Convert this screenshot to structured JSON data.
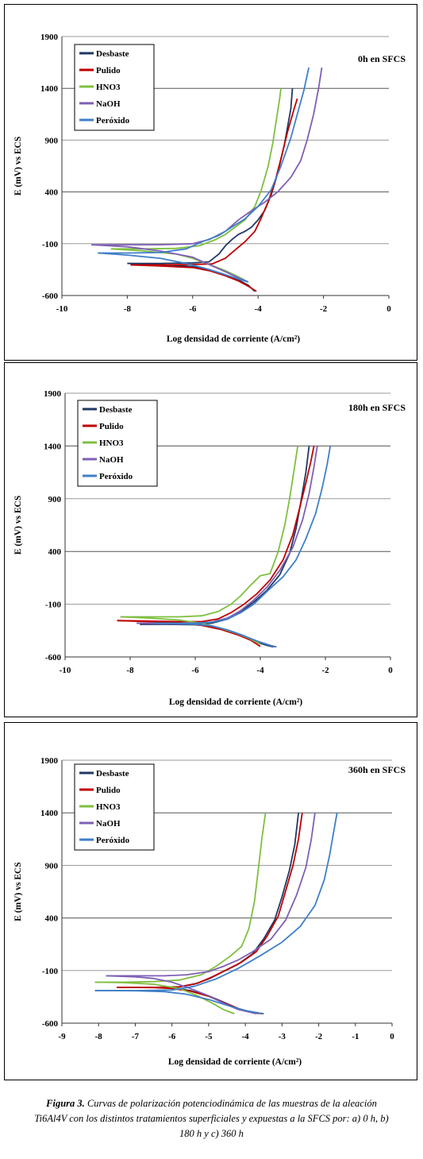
{
  "chart_data": [
    {
      "type": "line",
      "title": "0h en SFCS",
      "xlabel": "Log densidad de corriente (A/cm²)",
      "ylabel": "E (mV) vs ECS",
      "xlim": [
        -10,
        0
      ],
      "ylim": [
        -600,
        1900
      ],
      "xticks": [
        "-10",
        "-8",
        "-6",
        "-4",
        "-2",
        "0"
      ],
      "yticks": [
        "-600",
        "-100",
        "400",
        "900",
        "1400",
        "1900"
      ],
      "grid": "horizontal",
      "legend_position": "top-left",
      "series": [
        {
          "name": "Desbaste",
          "color": "#1f3864",
          "x": [
            -8.0,
            -7.0,
            -6.0,
            -5.5,
            -5.2,
            -5.0,
            -4.8,
            -4.6,
            -4.4,
            -4.2,
            -4.0,
            -3.8,
            -3.6,
            -3.4,
            -3.2,
            -3.0,
            -2.95
          ],
          "y": [
            -290,
            -290,
            -285,
            -275,
            -200,
            -120,
            -60,
            -10,
            20,
            60,
            130,
            220,
            370,
            580,
            850,
            1200,
            1400
          ],
          "x2": [
            -8.0,
            -7.0,
            -6.0,
            -5.5,
            -5.0,
            -4.6,
            -4.3,
            -4.1
          ],
          "y2": [
            -290,
            -300,
            -320,
            -350,
            -400,
            -450,
            -500,
            -560
          ]
        },
        {
          "name": "Pulido",
          "color": "#c00000",
          "x": [
            -7.9,
            -7.0,
            -6.0,
            -5.4,
            -5.0,
            -4.7,
            -4.4,
            -4.1,
            -3.9,
            -3.7,
            -3.5,
            -3.3,
            -3.1,
            -2.9,
            -2.8
          ],
          "y": [
            -305,
            -305,
            -300,
            -295,
            -240,
            -160,
            -80,
            20,
            150,
            300,
            480,
            720,
            980,
            1200,
            1300
          ],
          "x2": [
            -7.9,
            -7.0,
            -6.0,
            -5.5,
            -5.0,
            -4.6,
            -4.3,
            -4.05
          ],
          "y2": [
            -305,
            -315,
            -330,
            -360,
            -410,
            -460,
            -510,
            -560
          ]
        },
        {
          "name": "HNO3",
          "color": "#7fbf3f",
          "x": [
            -8.5,
            -7.5,
            -6.5,
            -5.8,
            -5.3,
            -5.0,
            -4.7,
            -4.4,
            -4.1,
            -3.9,
            -3.7,
            -3.55,
            -3.45,
            -3.35,
            -3.3
          ],
          "y": [
            -150,
            -150,
            -145,
            -120,
            -60,
            -10,
            60,
            130,
            260,
            420,
            640,
            870,
            1080,
            1280,
            1400
          ],
          "x2": [
            -8.5,
            -7.5,
            -6.5,
            -6.0,
            -5.5,
            -5.0,
            -4.6,
            -4.3
          ],
          "y2": [
            -150,
            -170,
            -200,
            -240,
            -300,
            -360,
            -420,
            -470
          ]
        },
        {
          "name": "NaOH",
          "color": "#7f5fb4",
          "x": [
            -9.1,
            -8.0,
            -7.0,
            -6.0,
            -5.5,
            -5.0,
            -4.6,
            -4.2,
            -3.8,
            -3.4,
            -3.0,
            -2.7,
            -2.5,
            -2.3,
            -2.15,
            -2.05
          ],
          "y": [
            -110,
            -110,
            -110,
            -100,
            -60,
            20,
            130,
            220,
            300,
            400,
            540,
            700,
            900,
            1150,
            1400,
            1600
          ],
          "x2": [
            -9.1,
            -8.0,
            -7.0,
            -6.0,
            -5.5,
            -5.0,
            -4.6,
            -4.3
          ],
          "y2": [
            -110,
            -130,
            -170,
            -230,
            -300,
            -370,
            -430,
            -470
          ]
        },
        {
          "name": "Peróxido",
          "color": "#3f7fc8",
          "x": [
            -8.9,
            -8.0,
            -7.0,
            -6.2,
            -5.7,
            -5.2,
            -4.8,
            -4.4,
            -4.0,
            -3.6,
            -3.3,
            -3.0,
            -2.8,
            -2.6,
            -2.45
          ],
          "y": [
            -190,
            -190,
            -185,
            -150,
            -80,
            -20,
            60,
            140,
            260,
            420,
            650,
            920,
            1150,
            1380,
            1600
          ],
          "x2": [
            -8.9,
            -8.0,
            -7.0,
            -6.2,
            -5.6,
            -5.0,
            -4.6,
            -4.3
          ],
          "y2": [
            -190,
            -210,
            -240,
            -290,
            -340,
            -400,
            -440,
            -470
          ]
        }
      ]
    },
    {
      "type": "line",
      "title": "180h en SFCS",
      "xlabel": "Log densidad de corriente (A/cm²)",
      "ylabel": "E (mV)  vs  ECS",
      "xlim": [
        -10,
        0
      ],
      "ylim": [
        -600,
        1900
      ],
      "xticks": [
        "-10",
        "-8",
        "-6",
        "-4",
        "-2",
        "0"
      ],
      "yticks": [
        "-600",
        "-100",
        "400",
        "900",
        "1400",
        "1900"
      ],
      "grid": "horizontal",
      "legend_position": "top-left",
      "series": [
        {
          "name": "Desbaste",
          "color": "#1f3864",
          "x": [
            -7.7,
            -7.0,
            -6.0,
            -5.5,
            -5.0,
            -4.6,
            -4.2,
            -3.8,
            -3.4,
            -3.1,
            -2.9,
            -2.75,
            -2.6,
            -2.5
          ],
          "y": [
            -290,
            -290,
            -290,
            -280,
            -240,
            -170,
            -80,
            30,
            180,
            380,
            620,
            880,
            1150,
            1400
          ],
          "x2": [
            -7.7,
            -7.0,
            -6.0,
            -5.5,
            -5.0,
            -4.6,
            -4.2,
            -3.8,
            -3.6
          ],
          "y2": [
            -290,
            -290,
            -295,
            -310,
            -350,
            -400,
            -450,
            -490,
            -505
          ]
        },
        {
          "name": "Pulido",
          "color": "#c00000",
          "x": [
            -8.4,
            -7.5,
            -6.5,
            -5.8,
            -5.3,
            -4.9,
            -4.5,
            -4.1,
            -3.7,
            -3.3,
            -3.0,
            -2.8,
            -2.6,
            -2.45,
            -2.35
          ],
          "y": [
            -255,
            -260,
            -265,
            -265,
            -240,
            -180,
            -100,
            0,
            130,
            320,
            560,
            800,
            1050,
            1250,
            1400
          ],
          "x2": [
            -8.4,
            -7.5,
            -6.5,
            -5.8,
            -5.2,
            -4.7,
            -4.3,
            -4.0
          ],
          "y2": [
            -255,
            -265,
            -275,
            -300,
            -340,
            -390,
            -440,
            -500
          ]
        },
        {
          "name": "HNO3",
          "color": "#7fbf3f",
          "x": [
            -8.3,
            -7.5,
            -6.5,
            -5.8,
            -5.3,
            -4.9,
            -4.6,
            -4.3,
            -4.0,
            -3.7,
            -3.45,
            -3.25,
            -3.1,
            -2.95,
            -2.85
          ],
          "y": [
            -220,
            -220,
            -220,
            -210,
            -170,
            -100,
            -20,
            80,
            170,
            190,
            400,
            650,
            900,
            1200,
            1400
          ],
          "x2": [
            -8.3,
            -7.5,
            -6.5,
            -5.8,
            -5.2,
            -4.7,
            -4.3,
            -4.0
          ],
          "y2": [
            -220,
            -230,
            -250,
            -280,
            -330,
            -380,
            -430,
            -480
          ]
        },
        {
          "name": "NaOH",
          "color": "#7f5fb4",
          "x": [
            -7.8,
            -7.0,
            -6.0,
            -5.5,
            -5.0,
            -4.6,
            -4.2,
            -3.8,
            -3.4,
            -3.0,
            -2.7,
            -2.5,
            -2.35,
            -2.25
          ],
          "y": [
            -280,
            -280,
            -280,
            -270,
            -230,
            -160,
            -60,
            60,
            220,
            440,
            700,
            950,
            1200,
            1400
          ],
          "x2": [
            -7.8,
            -7.0,
            -6.0,
            -5.5,
            -5.0,
            -4.5,
            -4.1,
            -3.7,
            -3.5
          ],
          "y2": [
            -280,
            -285,
            -290,
            -305,
            -345,
            -400,
            -450,
            -490,
            -505
          ]
        },
        {
          "name": "Peróxido",
          "color": "#3f7fc8",
          "x": [
            -7.3,
            -6.5,
            -6.0,
            -5.5,
            -5.0,
            -4.6,
            -4.2,
            -3.8,
            -3.3,
            -2.9,
            -2.6,
            -2.3,
            -2.1,
            -1.95,
            -1.85
          ],
          "y": [
            -280,
            -280,
            -280,
            -270,
            -240,
            -180,
            -100,
            20,
            160,
            320,
            520,
            760,
            1000,
            1220,
            1400
          ],
          "x2": [
            -7.3,
            -6.5,
            -6.0,
            -5.5,
            -5.0,
            -4.5,
            -4.1,
            -3.7,
            -3.55
          ],
          "y2": [
            -280,
            -285,
            -290,
            -305,
            -345,
            -400,
            -450,
            -490,
            -505
          ]
        }
      ]
    },
    {
      "type": "line",
      "title": "360h en SFCS",
      "xlabel": "Log densidad de corriente (A/cm²)",
      "ylabel": "E (mV) vs ECS",
      "xlim": [
        -9,
        0
      ],
      "ylim": [
        -600,
        1900
      ],
      "xticks": [
        "-9",
        "-8",
        "-7",
        "-6",
        "-5",
        "-4",
        "-3",
        "-2",
        "-1",
        "0"
      ],
      "yticks": [
        "-600",
        "-100",
        "400",
        "900",
        "1400",
        "1900"
      ],
      "grid": "horizontal",
      "legend_position": "top-left",
      "series": [
        {
          "name": "Desbaste",
          "color": "#1f3864",
          "x": [
            -7.5,
            -6.5,
            -5.8,
            -5.4,
            -5.0,
            -4.6,
            -4.2,
            -3.8,
            -3.5,
            -3.2,
            -3.0,
            -2.8,
            -2.65,
            -2.55
          ],
          "y": [
            -260,
            -260,
            -255,
            -230,
            -180,
            -110,
            -40,
            60,
            200,
            380,
            600,
            850,
            1100,
            1400
          ],
          "x2": [
            -7.5,
            -6.5,
            -6.0,
            -5.5,
            -5.0,
            -4.6,
            -4.2,
            -3.8,
            -3.5
          ],
          "y2": [
            -260,
            -260,
            -265,
            -290,
            -340,
            -400,
            -460,
            -500,
            -510
          ]
        },
        {
          "name": "Pulido",
          "color": "#c00000",
          "x": [
            -7.5,
            -6.5,
            -5.8,
            -5.3,
            -4.9,
            -4.5,
            -4.1,
            -3.7,
            -3.4,
            -3.1,
            -2.9,
            -2.7,
            -2.55,
            -2.45
          ],
          "y": [
            -260,
            -260,
            -255,
            -220,
            -160,
            -90,
            -20,
            80,
            230,
            420,
            660,
            900,
            1150,
            1400
          ],
          "x2": [
            -7.5,
            -6.5,
            -6.0,
            -5.5,
            -5.0,
            -4.6,
            -4.2,
            -3.8,
            -3.5
          ],
          "y2": [
            -260,
            -262,
            -270,
            -295,
            -345,
            -405,
            -460,
            -500,
            -510
          ]
        },
        {
          "name": "HNO3",
          "color": "#7fbf3f",
          "x": [
            -8.1,
            -7.3,
            -6.5,
            -5.8,
            -5.2,
            -4.8,
            -4.4,
            -4.1,
            -3.9,
            -3.75,
            -3.65,
            -3.55,
            -3.45
          ],
          "y": [
            -210,
            -210,
            -205,
            -190,
            -140,
            -60,
            40,
            130,
            300,
            560,
            850,
            1150,
            1400
          ],
          "x2": [
            -8.1,
            -7.3,
            -6.5,
            -5.8,
            -5.3,
            -4.9,
            -4.6,
            -4.3
          ],
          "y2": [
            -210,
            -215,
            -230,
            -270,
            -340,
            -410,
            -470,
            -510
          ]
        },
        {
          "name": "NaOH",
          "color": "#7f5fb4",
          "x": [
            -7.8,
            -7.0,
            -6.2,
            -5.6,
            -5.0,
            -4.6,
            -4.2,
            -3.8,
            -3.3,
            -2.9,
            -2.6,
            -2.35,
            -2.2,
            -2.1
          ],
          "y": [
            -150,
            -150,
            -150,
            -140,
            -110,
            -60,
            0,
            80,
            200,
            380,
            620,
            880,
            1150,
            1400
          ],
          "x2": [
            -7.8,
            -7.0,
            -6.5,
            -6.0,
            -5.5,
            -5.0,
            -4.6,
            -4.2,
            -3.7
          ],
          "y2": [
            -150,
            -160,
            -175,
            -210,
            -270,
            -340,
            -410,
            -470,
            -510
          ]
        },
        {
          "name": "Peróxido",
          "color": "#3f7fc8",
          "x": [
            -8.1,
            -7.0,
            -6.0,
            -5.4,
            -4.8,
            -4.2,
            -3.6,
            -3.0,
            -2.5,
            -2.1,
            -1.85,
            -1.7,
            -1.6,
            -1.5
          ],
          "y": [
            -290,
            -290,
            -285,
            -250,
            -180,
            -80,
            40,
            170,
            320,
            520,
            760,
            1000,
            1200,
            1400
          ],
          "x2": [
            -8.1,
            -7.0,
            -6.2,
            -5.6,
            -5.0,
            -4.5,
            -4.0,
            -3.5
          ],
          "y2": [
            -290,
            -292,
            -300,
            -325,
            -375,
            -430,
            -480,
            -510
          ]
        }
      ]
    }
  ],
  "caption": {
    "label": "Figura 3.",
    "text": "Curvas de polarización potenciodinámica de las muestras de la aleación Ti6Al4V con los distintos tratamientos superficiales y expuestas a la SFCS por: a) 0 h, b) 180 h y c) 360 h"
  }
}
